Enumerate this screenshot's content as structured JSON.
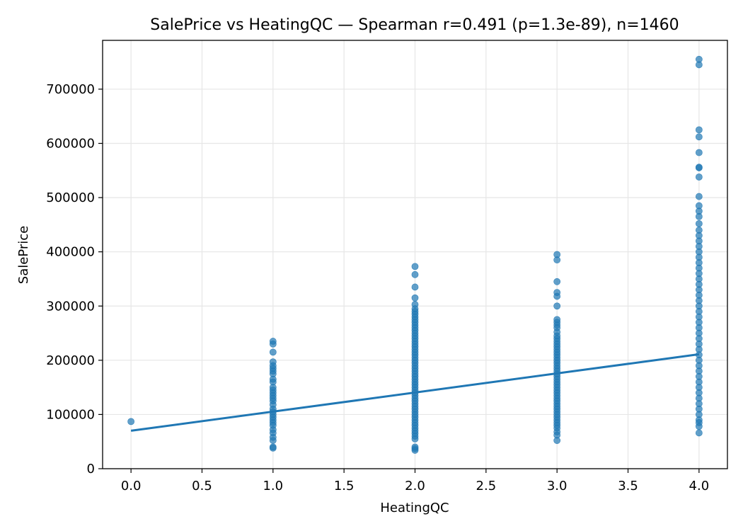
{
  "chart_data": {
    "type": "scatter",
    "title": "SalePrice vs HeatingQC — Spearman r=0.491 (p=1.3e-89), n=1460",
    "xlabel": "HeatingQC",
    "ylabel": "SalePrice",
    "xlim": [
      -0.2,
      4.2
    ],
    "ylim": [
      0,
      790000
    ],
    "xticks": [
      "0.0",
      "0.5",
      "1.0",
      "1.5",
      "2.0",
      "2.5",
      "3.0",
      "3.5",
      "4.0"
    ],
    "yticks": [
      "0",
      "100000",
      "200000",
      "300000",
      "400000",
      "500000",
      "600000",
      "700000"
    ],
    "grid": true,
    "point_color": "#1f77b4",
    "line_color": "#1f77b4",
    "series": [
      {
        "type": "scatter",
        "points": [
          [
            0,
            87000
          ],
          [
            1,
            38000
          ],
          [
            1,
            40000
          ],
          [
            1,
            52000
          ],
          [
            1,
            58000
          ],
          [
            1,
            66000
          ],
          [
            1,
            72000
          ],
          [
            1,
            80000
          ],
          [
            1,
            85000
          ],
          [
            1,
            90000
          ],
          [
            1,
            95000
          ],
          [
            1,
            100000
          ],
          [
            1,
            105000
          ],
          [
            1,
            110000
          ],
          [
            1,
            118000
          ],
          [
            1,
            125000
          ],
          [
            1,
            130000
          ],
          [
            1,
            135000
          ],
          [
            1,
            140000
          ],
          [
            1,
            145000
          ],
          [
            1,
            150000
          ],
          [
            1,
            160000
          ],
          [
            1,
            165000
          ],
          [
            1,
            175000
          ],
          [
            1,
            180000
          ],
          [
            1,
            185000
          ],
          [
            1,
            190000
          ],
          [
            1,
            197000
          ],
          [
            1,
            215000
          ],
          [
            1,
            230000
          ],
          [
            1,
            235000
          ],
          [
            2,
            34000
          ],
          [
            2,
            37000
          ],
          [
            2,
            40000
          ],
          [
            2,
            55000
          ],
          [
            2,
            60000
          ],
          [
            2,
            65000
          ],
          [
            2,
            70000
          ],
          [
            2,
            75000
          ],
          [
            2,
            80000
          ],
          [
            2,
            85000
          ],
          [
            2,
            90000
          ],
          [
            2,
            95000
          ],
          [
            2,
            100000
          ],
          [
            2,
            105000
          ],
          [
            2,
            110000
          ],
          [
            2,
            115000
          ],
          [
            2,
            120000
          ],
          [
            2,
            125000
          ],
          [
            2,
            130000
          ],
          [
            2,
            135000
          ],
          [
            2,
            140000
          ],
          [
            2,
            145000
          ],
          [
            2,
            150000
          ],
          [
            2,
            155000
          ],
          [
            2,
            160000
          ],
          [
            2,
            165000
          ],
          [
            2,
            170000
          ],
          [
            2,
            175000
          ],
          [
            2,
            180000
          ],
          [
            2,
            185000
          ],
          [
            2,
            190000
          ],
          [
            2,
            195000
          ],
          [
            2,
            200000
          ],
          [
            2,
            205000
          ],
          [
            2,
            210000
          ],
          [
            2,
            215000
          ],
          [
            2,
            220000
          ],
          [
            2,
            225000
          ],
          [
            2,
            230000
          ],
          [
            2,
            235000
          ],
          [
            2,
            240000
          ],
          [
            2,
            245000
          ],
          [
            2,
            250000
          ],
          [
            2,
            255000
          ],
          [
            2,
            260000
          ],
          [
            2,
            265000
          ],
          [
            2,
            270000
          ],
          [
            2,
            275000
          ],
          [
            2,
            280000
          ],
          [
            2,
            285000
          ],
          [
            2,
            290000
          ],
          [
            2,
            295000
          ],
          [
            2,
            303000
          ],
          [
            2,
            315000
          ],
          [
            2,
            335000
          ],
          [
            2,
            358000
          ],
          [
            2,
            373000
          ],
          [
            3,
            52000
          ],
          [
            3,
            62000
          ],
          [
            3,
            68000
          ],
          [
            3,
            75000
          ],
          [
            3,
            80000
          ],
          [
            3,
            85000
          ],
          [
            3,
            90000
          ],
          [
            3,
            95000
          ],
          [
            3,
            100000
          ],
          [
            3,
            105000
          ],
          [
            3,
            110000
          ],
          [
            3,
            115000
          ],
          [
            3,
            120000
          ],
          [
            3,
            125000
          ],
          [
            3,
            130000
          ],
          [
            3,
            135000
          ],
          [
            3,
            140000
          ],
          [
            3,
            145000
          ],
          [
            3,
            150000
          ],
          [
            3,
            155000
          ],
          [
            3,
            160000
          ],
          [
            3,
            165000
          ],
          [
            3,
            170000
          ],
          [
            3,
            175000
          ],
          [
            3,
            180000
          ],
          [
            3,
            185000
          ],
          [
            3,
            190000
          ],
          [
            3,
            195000
          ],
          [
            3,
            200000
          ],
          [
            3,
            205000
          ],
          [
            3,
            210000
          ],
          [
            3,
            215000
          ],
          [
            3,
            220000
          ],
          [
            3,
            225000
          ],
          [
            3,
            230000
          ],
          [
            3,
            235000
          ],
          [
            3,
            240000
          ],
          [
            3,
            245000
          ],
          [
            3,
            252000
          ],
          [
            3,
            260000
          ],
          [
            3,
            265000
          ],
          [
            3,
            270000
          ],
          [
            3,
            275000
          ],
          [
            3,
            300000
          ],
          [
            3,
            318000
          ],
          [
            3,
            325000
          ],
          [
            3,
            345000
          ],
          [
            3,
            385000
          ],
          [
            3,
            395000
          ],
          [
            4,
            66000
          ],
          [
            4,
            78000
          ],
          [
            4,
            85000
          ],
          [
            4,
            90000
          ],
          [
            4,
            100000
          ],
          [
            4,
            110000
          ],
          [
            4,
            120000
          ],
          [
            4,
            130000
          ],
          [
            4,
            140000
          ],
          [
            4,
            150000
          ],
          [
            4,
            160000
          ],
          [
            4,
            170000
          ],
          [
            4,
            180000
          ],
          [
            4,
            190000
          ],
          [
            4,
            200000
          ],
          [
            4,
            210000
          ],
          [
            4,
            220000
          ],
          [
            4,
            230000
          ],
          [
            4,
            240000
          ],
          [
            4,
            250000
          ],
          [
            4,
            260000
          ],
          [
            4,
            270000
          ],
          [
            4,
            280000
          ],
          [
            4,
            290000
          ],
          [
            4,
            300000
          ],
          [
            4,
            310000
          ],
          [
            4,
            320000
          ],
          [
            4,
            330000
          ],
          [
            4,
            340000
          ],
          [
            4,
            350000
          ],
          [
            4,
            360000
          ],
          [
            4,
            370000
          ],
          [
            4,
            380000
          ],
          [
            4,
            390000
          ],
          [
            4,
            400000
          ],
          [
            4,
            410000
          ],
          [
            4,
            420000
          ],
          [
            4,
            430000
          ],
          [
            4,
            440000
          ],
          [
            4,
            452000
          ],
          [
            4,
            465000
          ],
          [
            4,
            475000
          ],
          [
            4,
            485000
          ],
          [
            4,
            502000
          ],
          [
            4,
            538000
          ],
          [
            4,
            555000
          ],
          [
            4,
            556000
          ],
          [
            4,
            583000
          ],
          [
            4,
            612000
          ],
          [
            4,
            625000
          ],
          [
            4,
            745000
          ],
          [
            4,
            755000
          ]
        ]
      },
      {
        "type": "line",
        "points": [
          [
            0,
            70000
          ],
          [
            4,
            211000
          ]
        ]
      }
    ]
  }
}
